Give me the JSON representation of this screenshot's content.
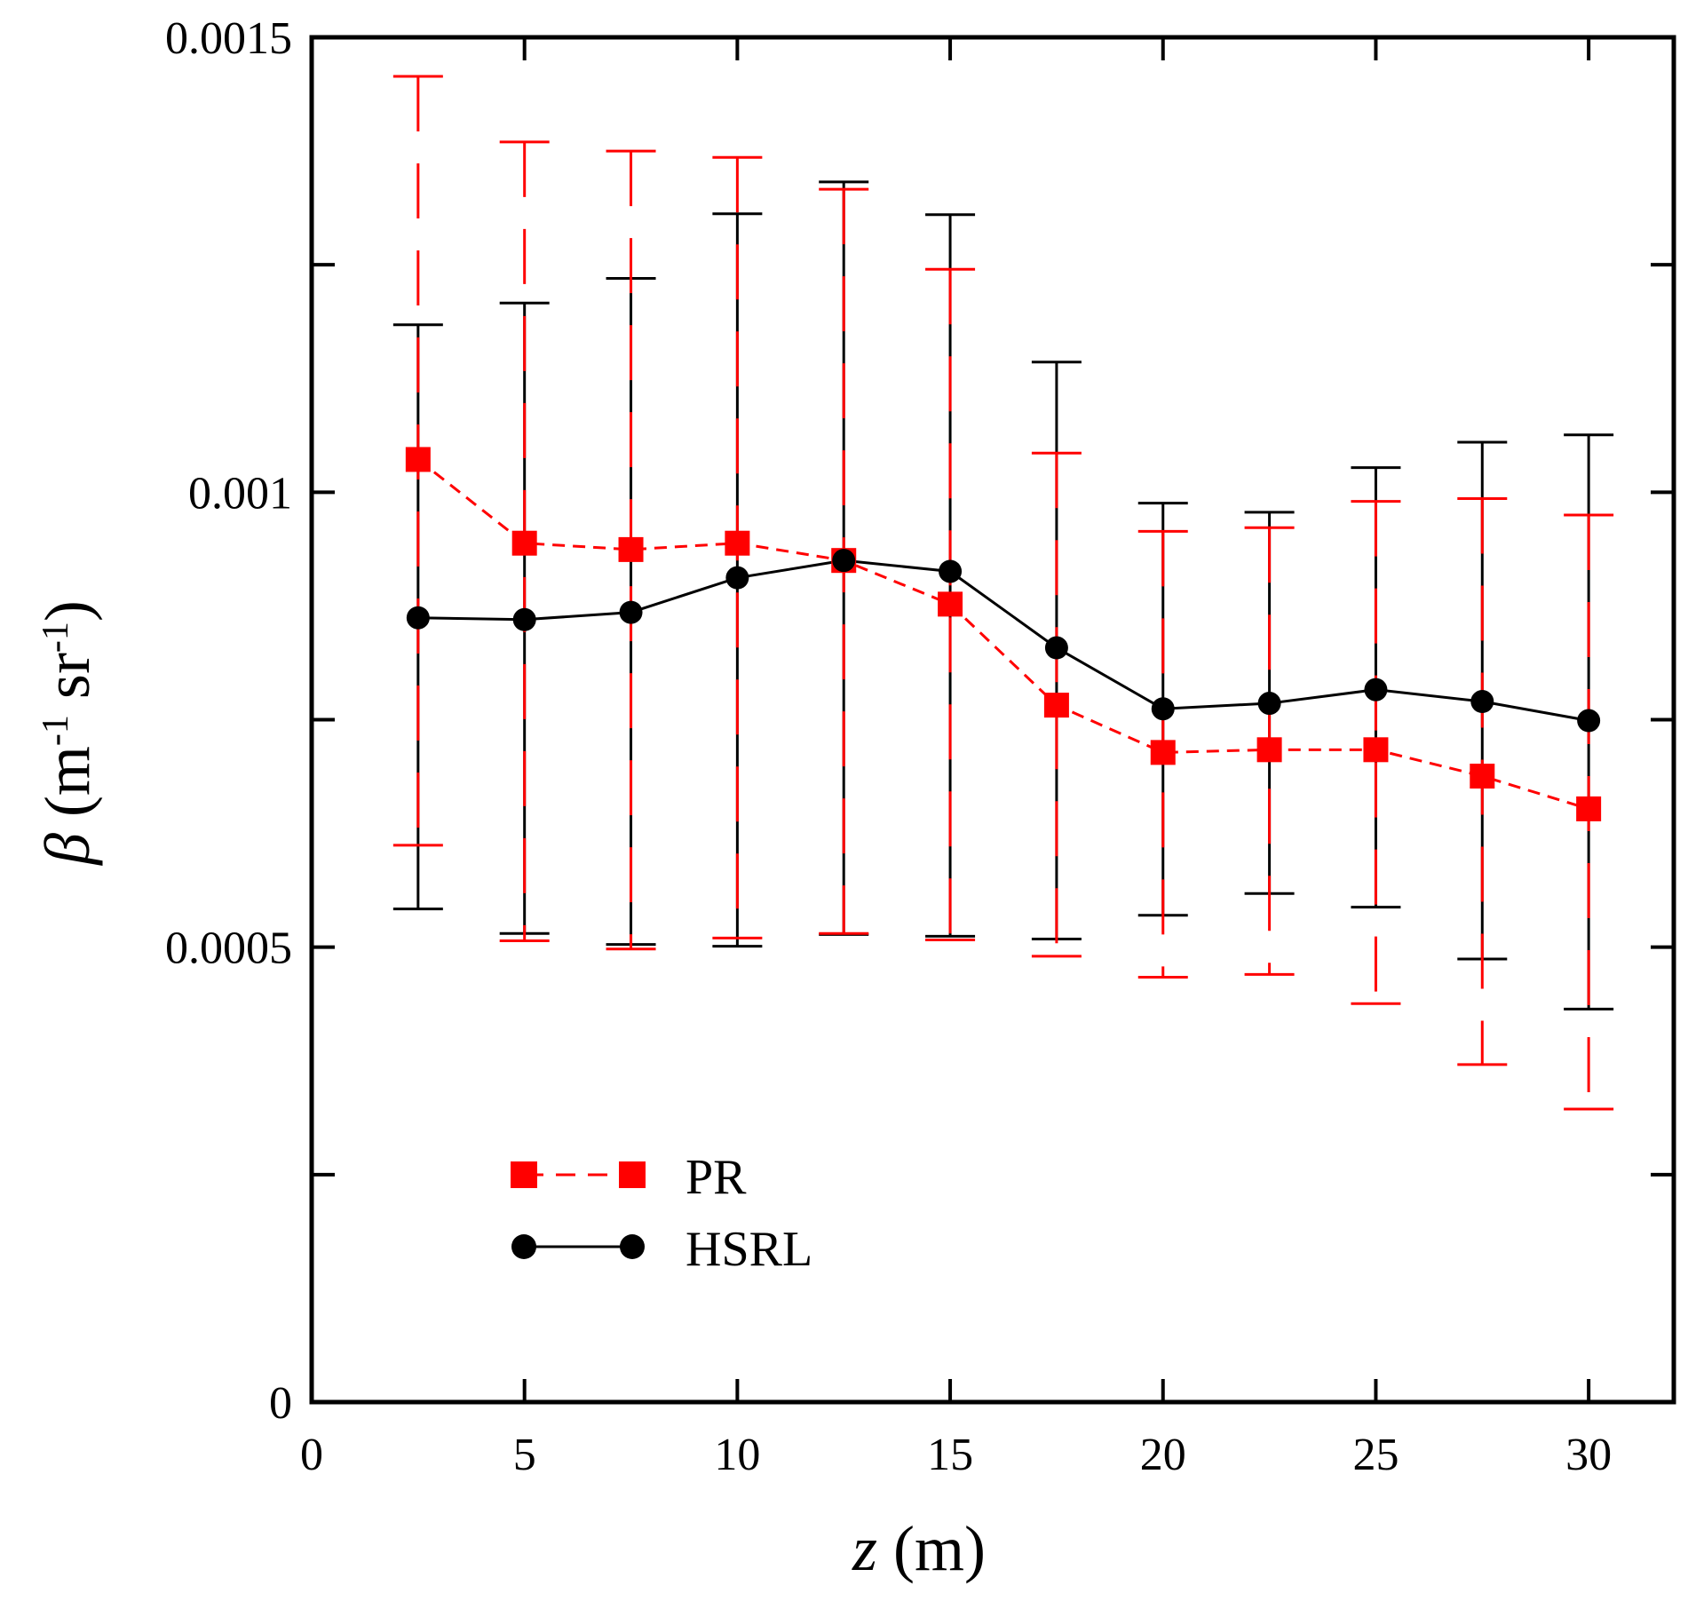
{
  "chart_data": {
    "type": "line",
    "title": "",
    "xlabel_var": "z",
    "xlabel_unit": " (m)",
    "ylabel_var": "β",
    "ylabel_unit_prefix": " (m",
    "ylabel_exp1": "-1",
    "ylabel_unit_mid": " sr",
    "ylabel_exp2": "-1",
    "ylabel_unit_suffix": ")",
    "xlim": [
      0,
      32
    ],
    "ylim": [
      0,
      0.0015
    ],
    "xticks": [
      0,
      5,
      10,
      15,
      20,
      25,
      30
    ],
    "xtick_labels": [
      "0",
      "5",
      "10",
      "15",
      "20",
      "25",
      "30"
    ],
    "yticks": [
      0,
      0.00025,
      0.0005,
      0.00075,
      0.001,
      0.00125,
      0.0015
    ],
    "ytick_labels": [
      "0",
      "",
      "0.0005",
      "",
      "0.001",
      "",
      "0.0015"
    ],
    "grid": false,
    "legend_position": "bottom-left",
    "series": [
      {
        "name": "PR",
        "color": "#ff0000",
        "marker": "square",
        "line_style": "dashed",
        "x": [
          2.5,
          5,
          7.5,
          10,
          12.5,
          15,
          17.5,
          20,
          22.5,
          25,
          27.5,
          30
        ],
        "y": [
          0.001036,
          0.000944,
          0.000937,
          0.000944,
          0.000925,
          0.000877,
          0.000766,
          0.000714,
          0.000717,
          0.000717,
          0.000688,
          0.000652
        ],
        "err_low": [
          0.000612,
          0.000507,
          0.000498,
          0.00051,
          0.000515,
          0.000508,
          0.00049,
          0.000467,
          0.00047,
          0.000438,
          0.000371,
          0.000322
        ],
        "err_high": [
          0.001457,
          0.001385,
          0.001375,
          0.001368,
          0.001333,
          0.001245,
          0.001043,
          0.000957,
          0.000961,
          0.00099,
          0.000993,
          0.000975
        ]
      },
      {
        "name": "HSRL",
        "color": "#000000",
        "marker": "circle",
        "line_style": "solid",
        "x": [
          2.5,
          5,
          7.5,
          10,
          12.5,
          15,
          17.5,
          20,
          22.5,
          25,
          27.5,
          30
        ],
        "y": [
          0.000862,
          0.00086,
          0.000868,
          0.000906,
          0.000925,
          0.000913,
          0.000829,
          0.000762,
          0.000768,
          0.000783,
          0.00077,
          0.000749
        ],
        "err_low": [
          0.000542,
          0.000515,
          0.000503,
          0.000501,
          0.000514,
          0.000512,
          0.000509,
          0.000535,
          0.000559,
          0.000544,
          0.000487,
          0.000432
        ],
        "err_high": [
          0.001184,
          0.001208,
          0.001235,
          0.001306,
          0.001341,
          0.001305,
          0.001143,
          0.000988,
          0.000978,
          0.001027,
          0.001055,
          0.001063
        ]
      }
    ]
  }
}
